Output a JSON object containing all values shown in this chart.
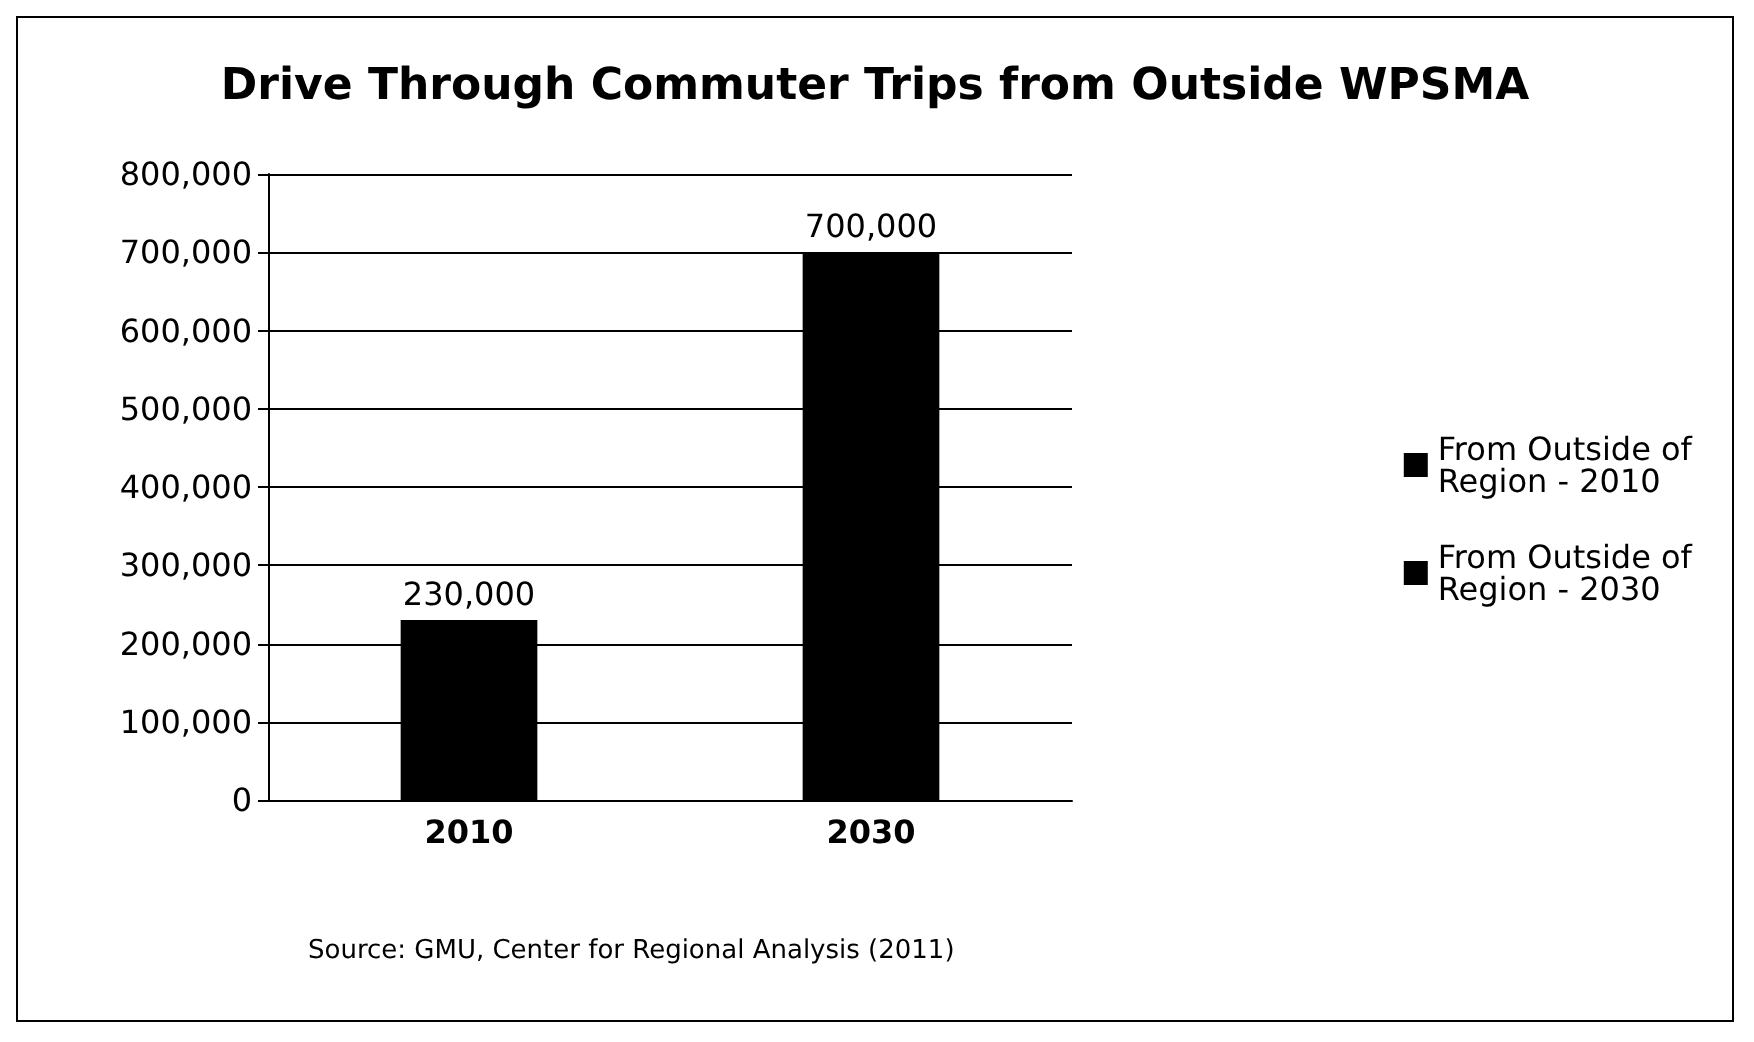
{
  "chart_data": {
    "type": "bar",
    "title": "Drive Through Commuter Trips from Outside WPSMA",
    "categories": [
      "2010",
      "2030"
    ],
    "series": [
      {
        "name": "From Outside of Region - 2010",
        "color": "#000000",
        "values": [
          230000,
          null
        ],
        "value_labels": [
          "230,000",
          null
        ]
      },
      {
        "name": "From Outside of Region - 2030",
        "color": "#000000",
        "values": [
          null,
          700000
        ],
        "value_labels": [
          null,
          "700,000"
        ]
      }
    ],
    "stacked": true,
    "ylim": [
      0,
      800000
    ],
    "yticks": [
      0,
      {
        "value": 100000,
        "label": "100,000"
      },
      {
        "value": 200000,
        "label": "200,000"
      },
      {
        "value": 300000,
        "label": "300,000"
      },
      {
        "value": 400000,
        "label": "400,000"
      },
      {
        "value": 500000,
        "label": "500,000"
      },
      {
        "value": 600000,
        "label": "600,000"
      },
      {
        "value": 700000,
        "label": "700,000"
      },
      {
        "value": 800000,
        "label": "800,000"
      }
    ],
    "grid": "y",
    "legend": "right",
    "annotations": [
      "Source: GMU, Center for Regional Analysis (2011)"
    ]
  }
}
